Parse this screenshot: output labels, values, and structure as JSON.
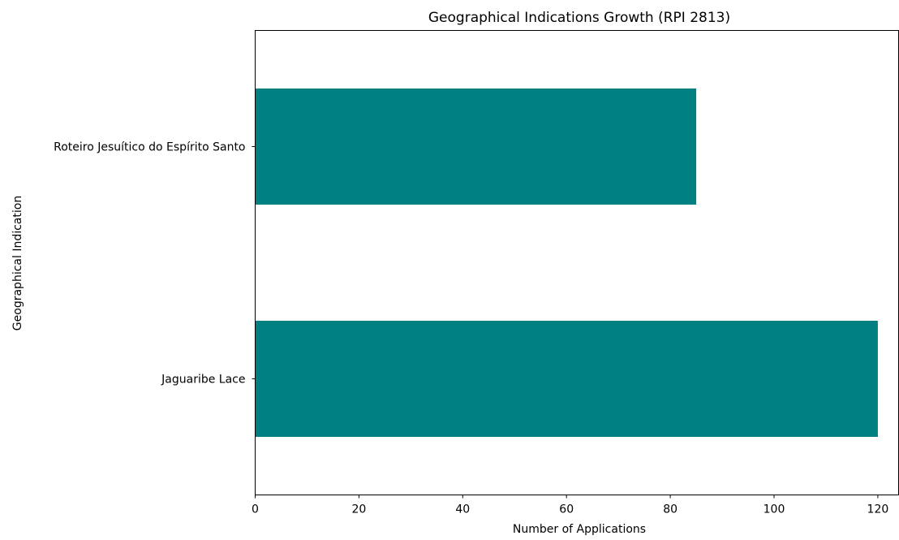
{
  "chart_data": {
    "type": "bar",
    "orientation": "horizontal",
    "title": "Geographical Indications Growth (RPI 2813)",
    "xlabel": "Number of Applications",
    "ylabel": "Geographical Indication",
    "categories": [
      "Jaguaribe Lace",
      "Roteiro Jesuítico do Espírito Santo"
    ],
    "values": [
      120,
      85
    ],
    "xlim": [
      0,
      124
    ],
    "xticks": [
      0,
      20,
      40,
      60,
      80,
      100,
      120
    ],
    "grid": false,
    "legend": "none",
    "bar_color": "#008080"
  }
}
